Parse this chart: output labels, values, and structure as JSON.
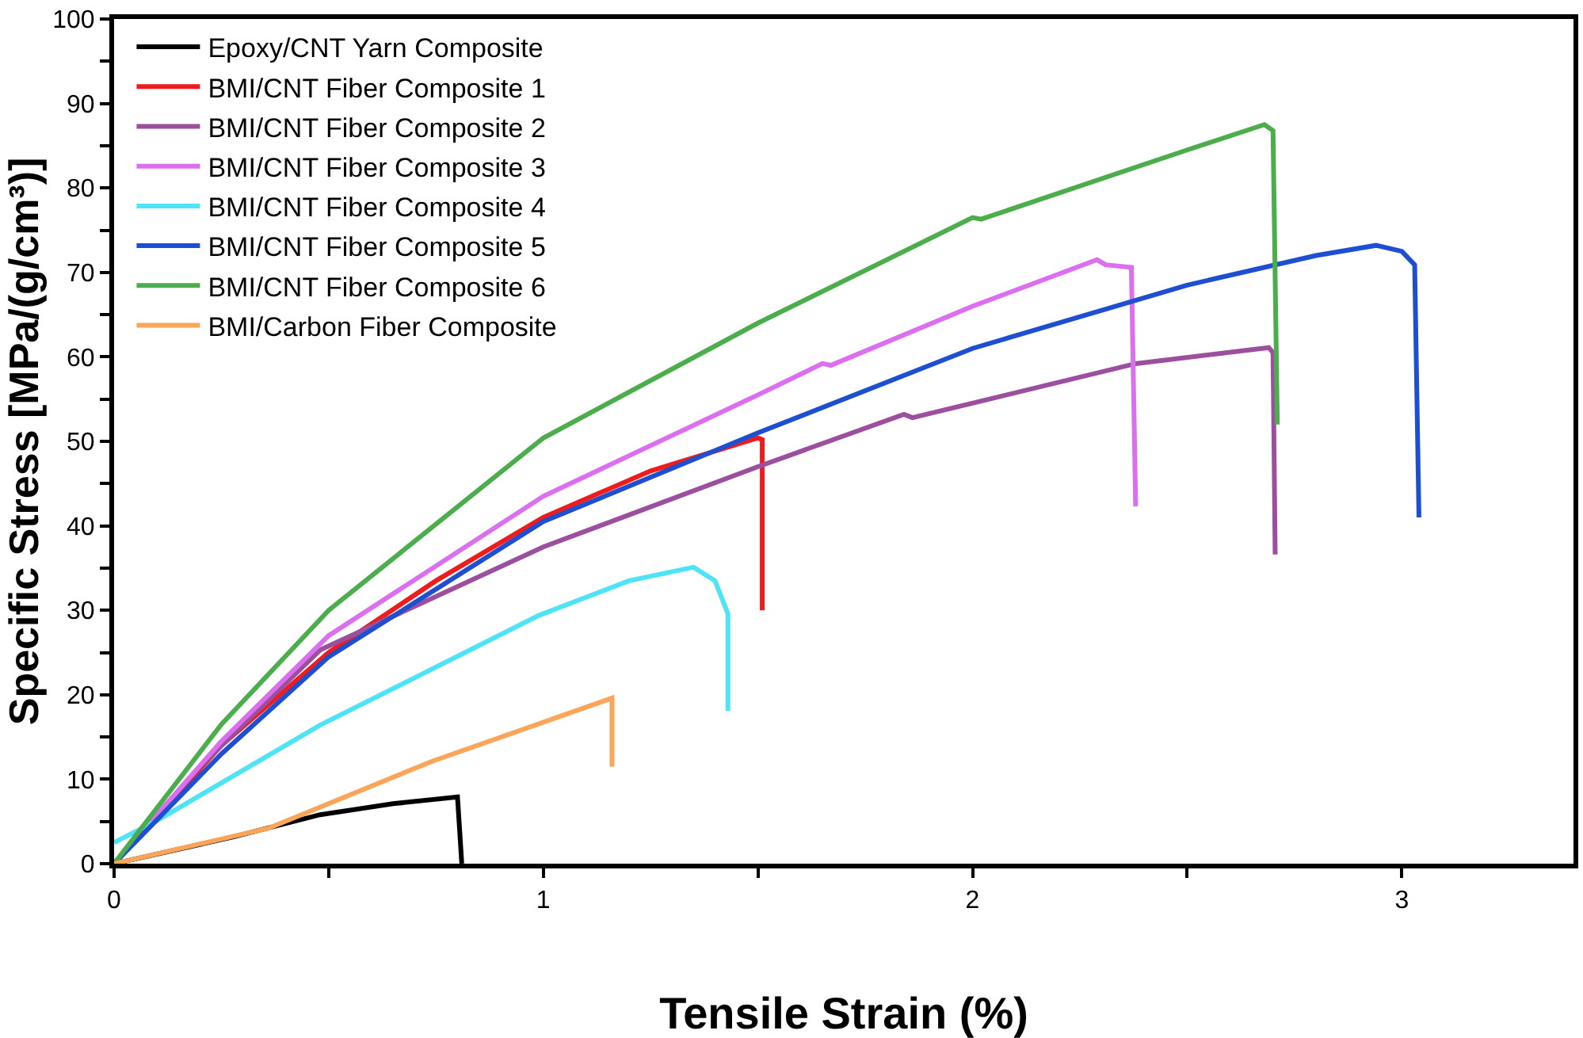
{
  "chart_data": {
    "type": "line",
    "xlabel": "Tensile Strain (%)",
    "ylabel": "Specific Stress [MPa/(g/cm³)]",
    "xlim": [
      0,
      3.4
    ],
    "ylim": [
      0,
      100
    ],
    "xticks": [
      0,
      {
        "value": 0.5,
        "label": null
      },
      1,
      {
        "value": 1.5,
        "label": null
      },
      2,
      {
        "value": 2.5,
        "label": null
      },
      3
    ],
    "yticks": [
      0,
      {
        "value": 5,
        "label": null
      },
      10,
      {
        "value": 15,
        "label": null
      },
      20,
      {
        "value": 25,
        "label": null
      },
      30,
      {
        "value": 35,
        "label": null
      },
      40,
      {
        "value": 45,
        "label": null
      },
      50,
      {
        "value": 55,
        "label": null
      },
      60,
      {
        "value": 65,
        "label": null
      },
      70,
      {
        "value": 75,
        "label": null
      },
      80,
      {
        "value": 85,
        "label": null
      },
      90,
      {
        "value": 95,
        "label": null
      },
      100
    ],
    "legend": "top left",
    "marker": "none",
    "line_style": "solid",
    "series": [
      {
        "name": "Epoxy/CNT Yarn Composite",
        "color": "#000000",
        "x": [
          0,
          0.28,
          0.48,
          0.65,
          0.8,
          0.805,
          0.81
        ],
        "values": [
          0,
          3.2,
          5.8,
          7.1,
          7.9,
          4,
          0
        ]
      },
      {
        "name": "BMI/CNT Fiber Composite 1",
        "color": "#ee1c1c",
        "x": [
          0,
          0.25,
          0.5,
          0.75,
          1,
          1.25,
          1.5,
          1.51,
          1.51
        ],
        "values": [
          0,
          14,
          25,
          33.5,
          41,
          46.5,
          50.4,
          50.2,
          30
        ]
      },
      {
        "name": "BMI/CNT Fiber Composite 2",
        "color": "#9b4f9e",
        "x": [
          0,
          0.2,
          0.48,
          1,
          1.5,
          1.84,
          1.86,
          2.38,
          2.69,
          2.7,
          2.705
        ],
        "values": [
          0,
          11.5,
          25.3,
          37.5,
          47,
          53.2,
          52.8,
          59.2,
          61.1,
          60.5,
          36.6
        ]
      },
      {
        "name": "BMI/CNT Fiber Composite 3",
        "color": "#dc6ef0",
        "x": [
          0,
          0.25,
          0.5,
          1,
          1.5,
          1.65,
          1.67,
          2,
          2.29,
          2.31,
          2.37,
          2.38
        ],
        "values": [
          0,
          14.5,
          27,
          43.5,
          55.5,
          59.2,
          59,
          66,
          71.5,
          70.9,
          70.6,
          42.3
        ]
      },
      {
        "name": "BMI/CNT Fiber Composite 4",
        "color": "#4ee3f5",
        "x": [
          0,
          0.1,
          0.48,
          0.99,
          1.2,
          1.35,
          1.4,
          1.43,
          1.43
        ],
        "values": [
          2.5,
          5.1,
          16.4,
          29.4,
          33.5,
          35.1,
          33.5,
          29.6,
          18.1
        ]
      },
      {
        "name": "BMI/CNT Fiber Composite 5",
        "color": "#1f4fd1",
        "x": [
          0,
          0.25,
          0.5,
          1,
          1.5,
          2,
          2.5,
          2.8,
          2.94,
          3.0,
          3.03,
          3.04
        ],
        "values": [
          0,
          13,
          24.5,
          40.5,
          51,
          61,
          68.5,
          72,
          73.2,
          72.5,
          70.9,
          41
        ]
      },
      {
        "name": "BMI/CNT Fiber Composite 6",
        "color": "#4cad4c",
        "x": [
          0,
          0.25,
          0.5,
          1,
          1.5,
          2,
          2.02,
          2.5,
          2.68,
          2.7,
          2.71
        ],
        "values": [
          0,
          16.5,
          30,
          50.4,
          64,
          76.5,
          76.3,
          84.5,
          87.5,
          86.8,
          52
        ]
      },
      {
        "name": "BMI/Carbon Fiber Composite",
        "color": "#fba55a",
        "x": [
          0,
          0.36,
          0.74,
          1.16,
          1.16
        ],
        "values": [
          0,
          4.2,
          12.1,
          19.6,
          11.5
        ]
      }
    ]
  }
}
